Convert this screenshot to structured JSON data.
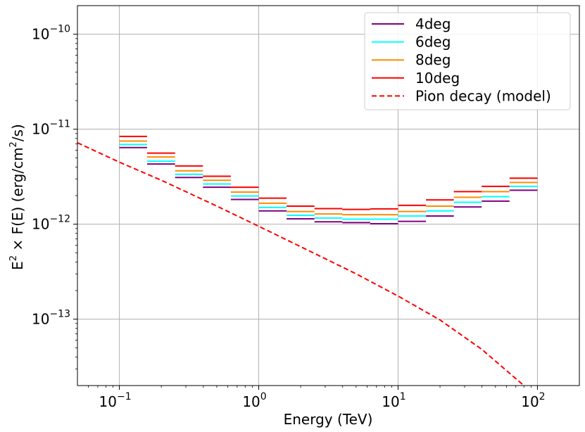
{
  "chart_data": {
    "type": "line",
    "title": "",
    "xlabel": "Energy (TeV)",
    "ylabel_parts": {
      "a": "E",
      "a_sup": "2",
      "b": " × F(E) (erg/cm",
      "b_sup": "2",
      "c": "/s)"
    },
    "xscale": "log",
    "yscale": "log",
    "xlim": [
      0.05,
      200
    ],
    "ylim": [
      2e-14,
      2e-10
    ],
    "grid": true,
    "legend_position": "top-right",
    "x_ticks": [
      {
        "value": 0.1,
        "base": "10",
        "exp": "−1"
      },
      {
        "value": 1,
        "base": "10",
        "exp": "0"
      },
      {
        "value": 10,
        "base": "10",
        "exp": "1"
      },
      {
        "value": 100,
        "base": "10",
        "exp": "2"
      }
    ],
    "y_ticks": [
      {
        "value": 1e-13,
        "base": "10",
        "exp": "−13"
      },
      {
        "value": 1e-12,
        "base": "10",
        "exp": "−12"
      },
      {
        "value": 1e-11,
        "base": "10",
        "exp": "−11"
      },
      {
        "value": 1e-10,
        "base": "10",
        "exp": "−10"
      }
    ],
    "bin_edges": [
      0.1,
      0.158,
      0.251,
      0.398,
      0.631,
      1.0,
      1.585,
      2.512,
      3.981,
      6.31,
      10.0,
      15.85,
      25.12,
      39.81,
      63.1,
      100.0
    ],
    "series": [
      {
        "name": "4deg",
        "style": "step",
        "color": "#800080",
        "values": [
          6.4e-12,
          4.3e-12,
          3.1e-12,
          2.45e-12,
          1.82e-12,
          1.38e-12,
          1.14e-12,
          1.06e-12,
          1.04e-12,
          1.01e-12,
          1.07e-12,
          1.22e-12,
          1.52e-12,
          1.75e-12,
          2.28e-12
        ]
      },
      {
        "name": "6deg",
        "style": "step",
        "color": "#00ffff",
        "values": [
          6.9e-12,
          4.6e-12,
          3.35e-12,
          2.65e-12,
          1.98e-12,
          1.5e-12,
          1.24e-12,
          1.16e-12,
          1.13e-12,
          1.13e-12,
          1.22e-12,
          1.38e-12,
          1.7e-12,
          1.95e-12,
          2.5e-12
        ]
      },
      {
        "name": "8deg",
        "style": "step",
        "color": "#ff8c00",
        "values": [
          7.5e-12,
          5.1e-12,
          3.65e-12,
          2.9e-12,
          2.18e-12,
          1.66e-12,
          1.36e-12,
          1.28e-12,
          1.26e-12,
          1.26e-12,
          1.36e-12,
          1.55e-12,
          1.92e-12,
          2.2e-12,
          2.75e-12
        ]
      },
      {
        "name": "10deg",
        "style": "step",
        "color": "#ff0000",
        "values": [
          8.4e-12,
          5.6e-12,
          4.1e-12,
          3.2e-12,
          2.45e-12,
          1.88e-12,
          1.55e-12,
          1.46e-12,
          1.43e-12,
          1.45e-12,
          1.58e-12,
          1.8e-12,
          2.2e-12,
          2.5e-12,
          3.05e-12
        ]
      },
      {
        "name": "Pion decay (model)",
        "style": "dashed",
        "color": "#ff0000",
        "x": [
          0.05,
          0.1,
          0.2,
          0.5,
          1,
          2,
          5,
          10,
          20,
          40,
          80
        ],
        "y": [
          7.2e-12,
          4.5e-12,
          2.9e-12,
          1.55e-12,
          9.5e-13,
          5.8e-13,
          3e-13,
          1.75e-13,
          9.8e-14,
          4.8e-14,
          2e-14
        ]
      }
    ]
  }
}
